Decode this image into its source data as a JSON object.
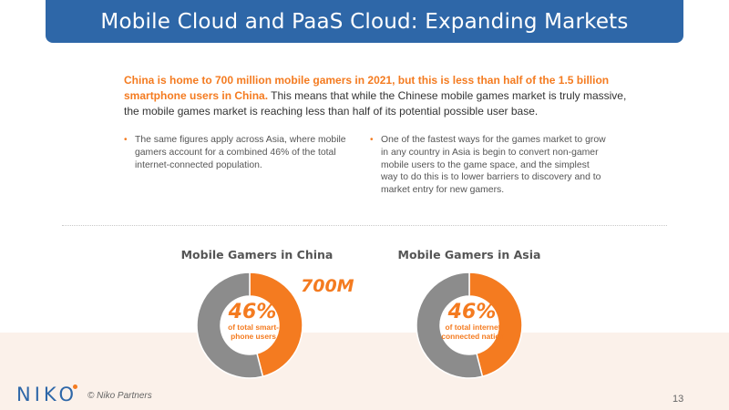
{
  "title": "Mobile Cloud and PaaS Cloud: Expanding Markets",
  "lead": {
    "highlight": "China is home to 700 million mobile gamers in 2021, but this is less than half of the 1.5 billion smartphone users in China.",
    "rest": " This means that while the Chinese mobile games market is truly massive, the mobile games market is reaching less than half of its potential possible user base."
  },
  "bullets": [
    "The same figures apply across Asia, where mobile gamers account for a combined 46% of the total internet-connected population.",
    "One of the fastest ways for the games market to grow in any country in Asia is begin to convert non-gamer mobile users to the game space, and the simplest way to do this is to lower barriers to discovery and to market entry for new gamers."
  ],
  "charts": [
    {
      "title": "Mobile Gamers in China",
      "percent_label": "46%",
      "sublabel": "of total smart-phone users",
      "callout": "700M"
    },
    {
      "title": "Mobile Gamers in Asia",
      "percent_label": "46%",
      "sublabel": "of total internet connected nation"
    }
  ],
  "chart_data": [
    {
      "type": "pie",
      "title": "Mobile Gamers in China",
      "values": [
        46,
        54
      ],
      "colors": [
        "#f47b20",
        "#8c8c8c"
      ]
    },
    {
      "type": "pie",
      "title": "Mobile Gamers in Asia",
      "values": [
        46,
        54
      ],
      "colors": [
        "#f47b20",
        "#8c8c8c"
      ]
    }
  ],
  "footer": {
    "logo": "NIKO",
    "copyright": "© Niko Partners",
    "page_number": "13"
  },
  "colors": {
    "title_bar": "#2e67a8",
    "accent": "#f47b20",
    "band": "#fbf1ea"
  }
}
